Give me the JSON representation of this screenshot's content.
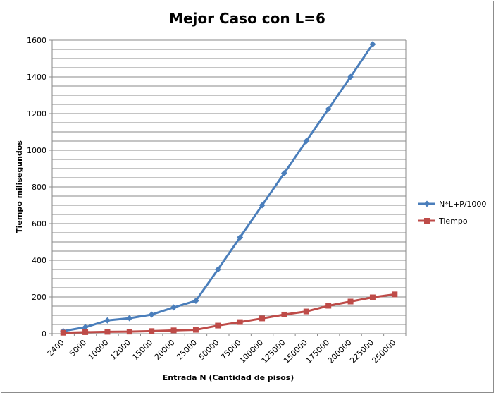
{
  "chart_data": {
    "type": "line",
    "title": "Mejor Caso con L=6",
    "xlabel": "Entrada N (Cantidad de pisos)",
    "ylabel": "Tiempo milisegundos",
    "categories": [
      "2400",
      "5000",
      "10000",
      "12000",
      "15000",
      "20000",
      "25000",
      "50000",
      "75000",
      "100000",
      "125000",
      "150000",
      "175000",
      "200000",
      "225000",
      "250000"
    ],
    "ylim": [
      0,
      1600
    ],
    "yticks": [
      "0",
      "200",
      "400",
      "600",
      "800",
      "1000",
      "1200",
      "1400",
      "1600"
    ],
    "grid": "horizontal",
    "legend_position": "right",
    "series": [
      {
        "name": "N*L+P/1000",
        "color": "#4a7ebb",
        "marker": "diamond",
        "values": [
          14,
          35,
          72,
          84,
          104,
          143,
          179,
          350,
          525,
          700,
          875,
          1050,
          1225,
          1400,
          1578,
          null
        ]
      },
      {
        "name": "Tiempo",
        "color": "#be4b48",
        "marker": "square",
        "values": [
          5,
          8,
          10,
          11,
          14,
          18,
          21,
          44,
          63,
          83,
          104,
          121,
          152,
          175,
          198,
          214
        ]
      }
    ]
  }
}
